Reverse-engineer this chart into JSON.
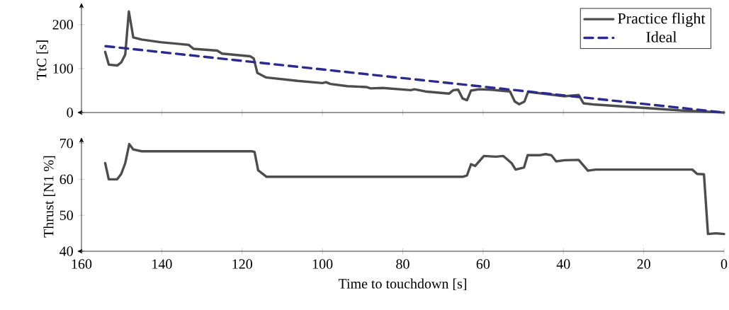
{
  "chart_data": [
    {
      "type": "line",
      "ylabel": "TtC [s]",
      "xlim": [
        160,
        0
      ],
      "xticks": [
        0,
        20,
        40,
        60,
        80,
        100,
        120,
        140,
        160
      ],
      "ylim": [
        0,
        240
      ],
      "yticks": [
        0,
        100,
        200
      ],
      "tick_labels": "y",
      "legend": "top right",
      "series": [
        {
          "name": "Practice flight",
          "color": "#4d4d4d",
          "line_style": "solid",
          "x": [
            154.1,
            153.2,
            151.1,
            150.1,
            149.1,
            148.2,
            147.1,
            145,
            140.3,
            133.3,
            132.1,
            126.2,
            125,
            118,
            117.1,
            116.2,
            114.1,
            106.2,
            100,
            99.1,
            98,
            93.8,
            89.1,
            88,
            85,
            78,
            77.1,
            74.4,
            68.5,
            67.4,
            66.2,
            65.1,
            64,
            63,
            61,
            58,
            53.3,
            52.1,
            51,
            49.7,
            48.8,
            39.7,
            36.2,
            35,
            32,
            19.1,
            9.6,
            0
          ],
          "values": [
            138,
            109,
            107,
            114,
            132,
            230,
            171,
            166,
            160,
            154,
            145,
            141,
            134,
            128,
            123,
            90,
            80,
            72,
            67,
            69,
            65,
            60,
            58,
            55,
            56,
            51,
            53,
            48,
            43,
            51,
            52,
            32,
            28,
            50,
            53,
            52,
            48,
            25,
            19,
            25,
            47,
            37,
            40,
            21,
            18,
            10,
            4,
            0
          ]
        },
        {
          "name": "Ideal",
          "color": "#2b2b8f",
          "line_style": "dashed",
          "x": [
            154,
            0
          ],
          "values": [
            151,
            0
          ]
        }
      ]
    },
    {
      "type": "line",
      "ylabel": "Thrust [N1 %]",
      "xlabel": "Time to touchdown [s]",
      "xlim": [
        160,
        0
      ],
      "xticks": [
        0,
        20,
        40,
        60,
        80,
        100,
        120,
        140,
        160
      ],
      "ylim": [
        40,
        70.5
      ],
      "yticks": [
        40,
        50,
        60,
        70
      ],
      "series": [
        {
          "color": "#4d4d4d",
          "line_style": "solid",
          "x": [
            154.1,
            153.2,
            151.1,
            150.1,
            149.1,
            148.1,
            147.1,
            145,
            117.6,
            116.9,
            116,
            113.9,
            65.1,
            64,
            63,
            62,
            59.8,
            56.8,
            55,
            52.9,
            51.9,
            49.8,
            48.9,
            45.9,
            44.4,
            43,
            41.8,
            39.7,
            36.2,
            33.9,
            32,
            7.9,
            6.7,
            5,
            4,
            2.1,
            0
          ],
          "values": [
            64.5,
            60,
            60,
            61.5,
            64.5,
            69.8,
            68.3,
            67.8,
            67.8,
            67.6,
            62.5,
            60.7,
            60.7,
            61.1,
            64.2,
            63.7,
            66.5,
            66.3,
            66.5,
            64.5,
            62.7,
            63.3,
            66.7,
            66.7,
            67,
            66.7,
            65,
            65.3,
            65.4,
            62.4,
            62.7,
            62.7,
            61.5,
            61.4,
            44.8,
            45,
            44.8
          ]
        }
      ]
    }
  ]
}
